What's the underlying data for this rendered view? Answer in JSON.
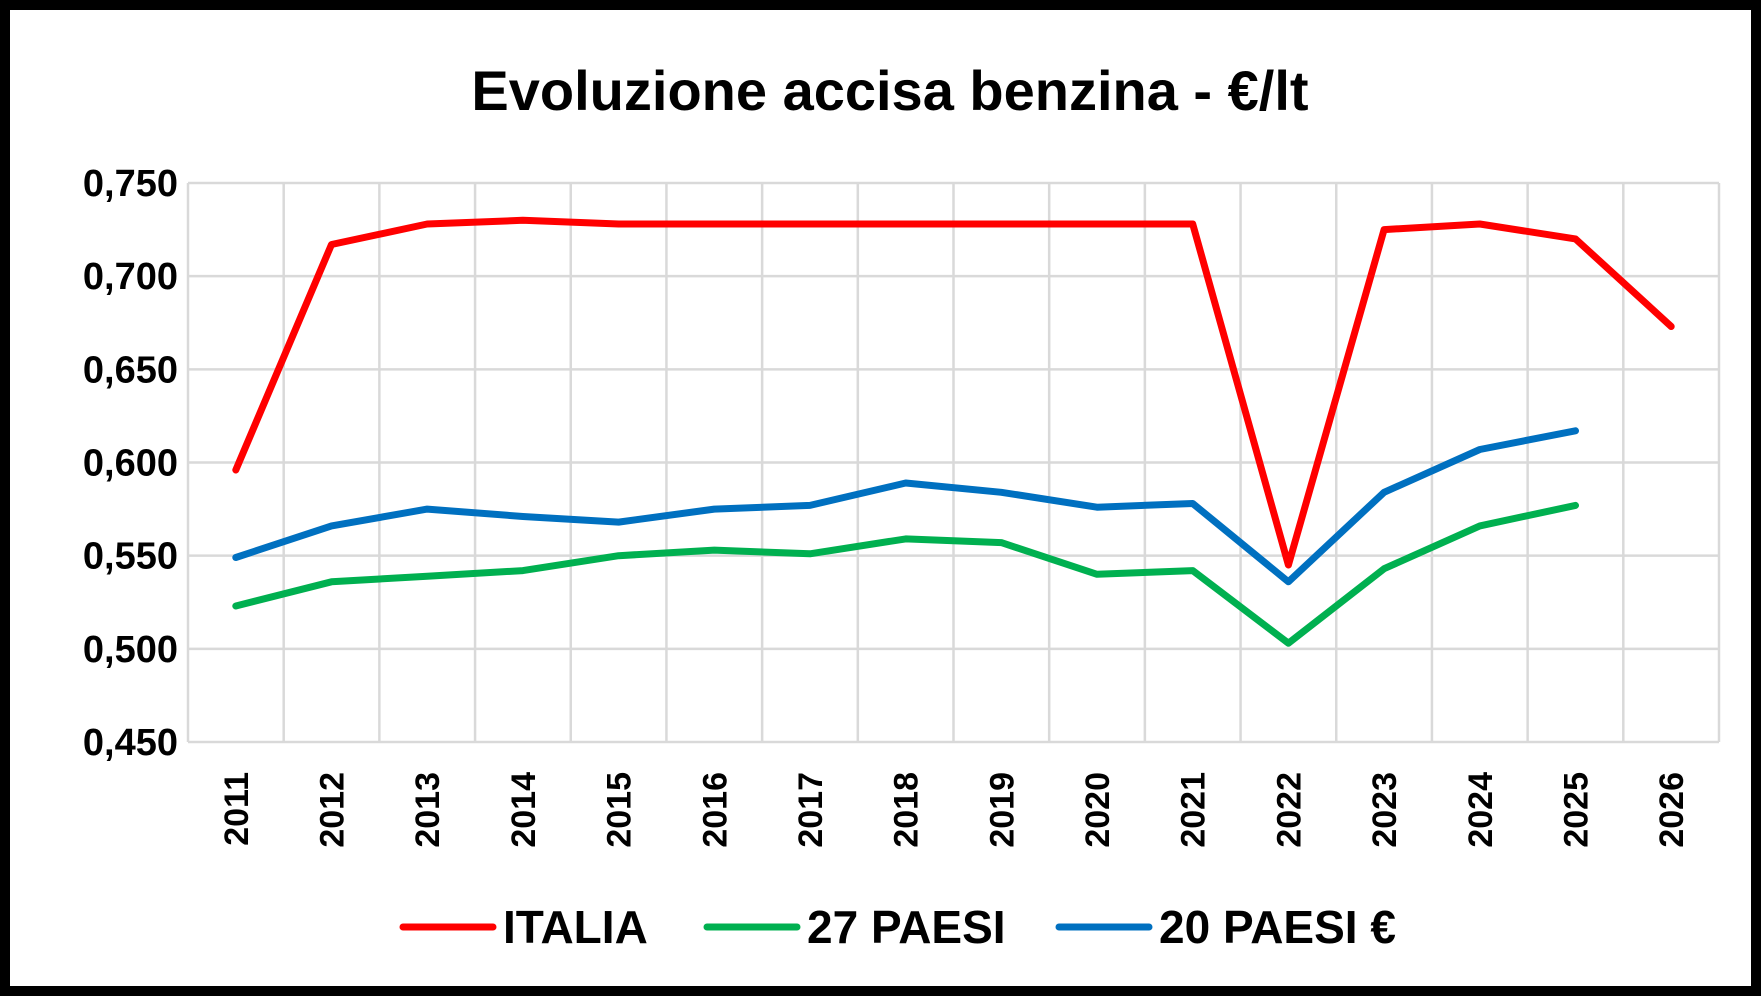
{
  "chart_data": {
    "type": "line",
    "title": "Evoluzione accisa benzina - €/lt",
    "xlabel": "",
    "ylabel": "",
    "categories": [
      "2011",
      "2012",
      "2013",
      "2014",
      "2015",
      "2016",
      "2017",
      "2018",
      "2019",
      "2020",
      "2021",
      "2022",
      "2023",
      "2024",
      "2025",
      "2026"
    ],
    "ylim": [
      0.45,
      0.75
    ],
    "yticks": [
      "0,450",
      "0,500",
      "0,550",
      "0,600",
      "0,650",
      "0,700",
      "0,750"
    ],
    "ytick_values": [
      0.45,
      0.5,
      0.55,
      0.6,
      0.65,
      0.7,
      0.75
    ],
    "grid": true,
    "legend_position": "bottom",
    "series": [
      {
        "name": "ITALIA",
        "color": "#ff0000",
        "values": [
          0.596,
          0.717,
          0.728,
          0.73,
          0.728,
          0.728,
          0.728,
          0.728,
          0.728,
          0.728,
          0.728,
          0.545,
          0.725,
          0.728,
          0.72,
          0.673
        ]
      },
      {
        "name": "27 PAESI",
        "color": "#00b050",
        "values": [
          0.523,
          0.536,
          0.539,
          0.542,
          0.55,
          0.553,
          0.551,
          0.559,
          0.557,
          0.54,
          0.542,
          0.503,
          0.543,
          0.566,
          0.577,
          null
        ]
      },
      {
        "name": "20 PAESI €",
        "color": "#0070c0",
        "values": [
          0.549,
          0.566,
          0.575,
          0.571,
          0.568,
          0.575,
          0.577,
          0.589,
          0.584,
          0.576,
          0.578,
          0.536,
          0.584,
          0.607,
          0.617,
          null
        ]
      }
    ]
  }
}
